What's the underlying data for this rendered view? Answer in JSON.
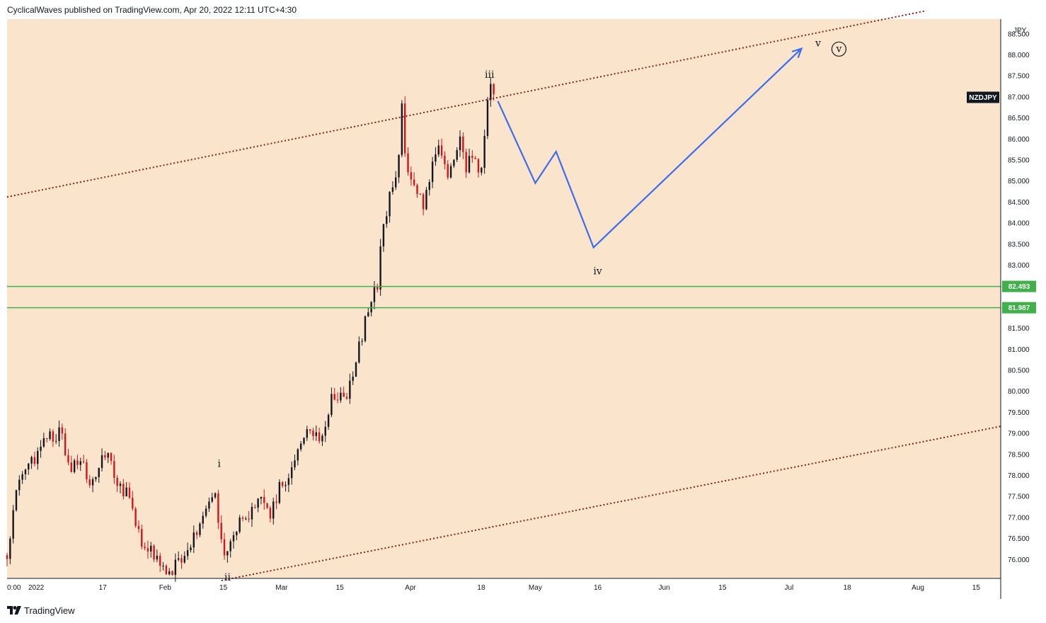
{
  "header": {
    "published_text": "CyclicalWaves published on TradingView.com, Apr 20, 2022 12:11 UTC+4:30"
  },
  "footer": {
    "brand": "TradingView",
    "logo_icon": "tradingview-logo-icon"
  },
  "colors": {
    "background": "#fae5cc",
    "candle_up": "#131722",
    "candle_down": "#d5141b",
    "channel": "#8b1f1f",
    "support": "#3fb04a",
    "projection": "#3b6cf0"
  },
  "chart_data": {
    "type": "candlestick",
    "symbol": "NZDJPY",
    "currency": "JPY",
    "ylim": [
      75.55,
      88.85
    ],
    "y_ticks": [
      "76.000",
      "76.500",
      "77.000",
      "77.500",
      "78.000",
      "78.500",
      "79.000",
      "79.500",
      "80.000",
      "80.500",
      "81.000",
      "81.500",
      "82.000",
      "82.500",
      "83.000",
      "83.500",
      "84.000",
      "84.500",
      "85.000",
      "85.500",
      "86.000",
      "86.500",
      "87.000",
      "87.500",
      "88.000"
    ],
    "top_tick_partial": "88.500",
    "x_ticks": [
      {
        "day": 0,
        "label": "0:00"
      },
      {
        "day": 7,
        "label": "2022"
      },
      {
        "day": 23,
        "label": "17"
      },
      {
        "day": 38,
        "label": "Feb"
      },
      {
        "day": 52,
        "label": "15"
      },
      {
        "day": 66,
        "label": "Mar"
      },
      {
        "day": 80,
        "label": "15"
      },
      {
        "day": 97,
        "label": "Apr"
      },
      {
        "day": 114,
        "label": "18"
      },
      {
        "day": 127,
        "label": "May"
      },
      {
        "day": 142,
        "label": "16"
      },
      {
        "day": 158,
        "label": "Jun"
      },
      {
        "day": 172,
        "label": "15"
      },
      {
        "day": 188,
        "label": "Jul"
      },
      {
        "day": 202,
        "label": "18"
      },
      {
        "day": 219,
        "label": "Aug"
      },
      {
        "day": 233,
        "label": "15"
      }
    ],
    "price_path": [
      [
        0,
        76.1
      ],
      [
        3,
        78.0
      ],
      [
        6,
        78.3
      ],
      [
        9,
        78.9
      ],
      [
        13,
        79.0
      ],
      [
        15,
        78.2
      ],
      [
        18,
        78.4
      ],
      [
        20,
        77.7
      ],
      [
        22,
        78.2
      ],
      [
        24,
        78.6
      ],
      [
        26,
        77.9
      ],
      [
        29,
        77.5
      ],
      [
        32,
        76.5
      ],
      [
        35,
        76.2
      ],
      [
        38,
        75.8
      ],
      [
        40,
        75.8
      ],
      [
        42,
        76.1
      ],
      [
        45,
        76.6
      ],
      [
        48,
        77.2
      ],
      [
        50,
        77.7
      ],
      [
        52,
        76.0
      ],
      [
        55,
        76.8
      ],
      [
        58,
        77.1
      ],
      [
        61,
        77.6
      ],
      [
        63,
        76.9
      ],
      [
        65,
        77.6
      ],
      [
        67,
        77.9
      ],
      [
        70,
        78.5
      ],
      [
        73,
        79.2
      ],
      [
        75,
        78.8
      ],
      [
        78,
        79.8
      ],
      [
        82,
        80.0
      ],
      [
        84,
        80.8
      ],
      [
        87,
        82.0
      ],
      [
        89,
        82.5
      ],
      [
        90,
        83.8
      ],
      [
        92,
        84.6
      ],
      [
        94,
        85.2
      ],
      [
        95,
        86.8
      ],
      [
        96,
        85.2
      ],
      [
        98,
        85.0
      ],
      [
        100,
        84.4
      ],
      [
        102,
        85.2
      ],
      [
        104,
        85.9
      ],
      [
        106,
        85.2
      ],
      [
        108,
        85.5
      ],
      [
        109,
        86.2
      ],
      [
        110,
        85.3
      ],
      [
        112,
        85.6
      ],
      [
        114,
        85.2
      ],
      [
        115,
        86.3
      ],
      [
        116,
        87.2
      ],
      [
        117,
        87.0
      ]
    ],
    "channel_upper": {
      "p1": [
        0,
        84.62
      ],
      "p2": [
        218,
        88.99
      ]
    },
    "channel_lower": {
      "p1": [
        50,
        75.47
      ],
      "p2": [
        237,
        79.13
      ]
    },
    "support_levels": [
      {
        "value": 82.493,
        "label": "82.493"
      },
      {
        "value": 81.987,
        "label": "81.987"
      }
    ],
    "current_price_label": "NZDJPY",
    "current_price": 86.99,
    "projection": [
      [
        118,
        86.9
      ],
      [
        127,
        84.95
      ],
      [
        132,
        85.7
      ],
      [
        141,
        83.42
      ],
      [
        191,
        88.15
      ]
    ],
    "wave_labels": [
      {
        "text": "i",
        "day": 51,
        "value": 78.2
      },
      {
        "text": "ii",
        "day": 53,
        "value": 75.5
      },
      {
        "text": "iii",
        "day": 116,
        "value": 87.45
      },
      {
        "text": "iv",
        "day": 142,
        "value": 82.78
      },
      {
        "text": "v",
        "day": 195,
        "value": 88.2
      },
      {
        "text": "v",
        "day": 200,
        "value": 88.07,
        "circled": true
      }
    ]
  }
}
